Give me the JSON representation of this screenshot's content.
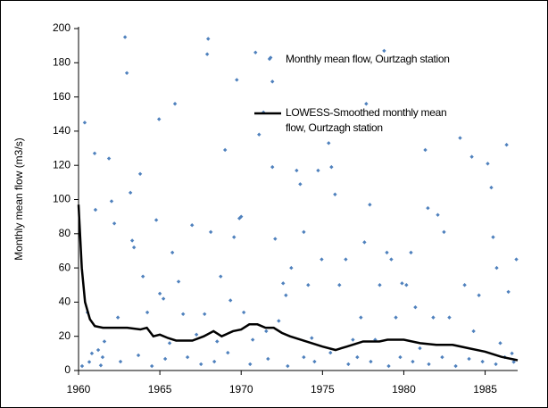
{
  "chart_data": {
    "type": "scatter",
    "y_label": "Monthly mean flow (m3/s)",
    "xlim": [
      1960,
      1987
    ],
    "ylim": [
      0,
      200
    ],
    "xticks": [
      1960,
      1965,
      1970,
      1975,
      1980,
      1985
    ],
    "yticks": [
      0,
      20,
      40,
      60,
      80,
      100,
      120,
      140,
      160,
      180,
      200
    ],
    "series": [
      {
        "name": "Monthly mean flow, Ourtzagh station",
        "color": "#4f81bd",
        "mode": "markers",
        "x": [
          1960.38,
          1960.55,
          1960.66,
          1960.82,
          1960.99,
          1961.04,
          1961.21,
          1961.37,
          1961.59,
          1961.87,
          1962.03,
          1962.2,
          1962.42,
          1962.86,
          1962.97,
          1963.19,
          1963.3,
          1963.41,
          1963.79,
          1963.96,
          1964.23,
          1964.78,
          1964.95,
          1965.0,
          1965.22,
          1965.6,
          1965.77,
          1965.93,
          1966.15,
          1966.43,
          1966.98,
          1967.25,
          1967.75,
          1967.91,
          1967.97,
          1968.13,
          1968.52,
          1968.74,
          1969.01,
          1969.34,
          1969.56,
          1969.73,
          1969.89,
          1970.0,
          1970.16,
          1970.71,
          1970.88,
          1971.1,
          1971.37,
          1971.54,
          1971.81,
          1971.92,
          1971.92,
          1972.09,
          1972.31,
          1972.58,
          1972.75,
          1973.08,
          1973.41,
          1973.63,
          1973.85,
          1974.12,
          1974.34,
          1974.73,
          1974.95,
          1975.38,
          1975.55,
          1975.77,
          1976.04,
          1976.43,
          1976.87,
          1977.36,
          1977.58,
          1977.69,
          1977.91,
          1978.24,
          1978.52,
          1978.79,
          1978.96,
          1979.23,
          1979.51,
          1979.89,
          1980.16,
          1980.44,
          1980.71,
          1980.99,
          1981.32,
          1981.48,
          1981.81,
          1982.09,
          1982.47,
          1982.8,
          1983.46,
          1983.74,
          1984.18,
          1984.29,
          1984.62,
          1985.16,
          1985.38,
          1985.49,
          1985.71,
          1985.93,
          1986.32,
          1986.43,
          1986.65,
          1986.92,
          1986.76,
          1960.22,
          1961.48,
          1962.58,
          1963.68,
          1964.51,
          1965.33,
          1966.7,
          1967.53,
          1968.35,
          1969.18,
          1970.55,
          1971.65,
          1972.86,
          1973.85,
          1974.51,
          1975.49,
          1976.59,
          1977.14,
          1977.97,
          1979.07,
          1979.78,
          1980.55,
          1981.54,
          1982.36,
          1983.19,
          1984.01,
          1984.84,
          1985.66,
          1986.21
        ],
        "values": [
          145,
          34,
          5,
          10,
          127,
          94,
          12,
          3,
          17,
          124,
          99,
          86,
          31,
          195,
          174,
          104,
          76,
          72,
          115,
          55,
          34,
          88,
          147,
          45,
          42,
          16,
          69,
          156,
          52,
          33,
          85,
          21,
          33,
          185,
          194,
          81,
          17,
          55,
          129,
          41,
          78,
          170,
          89,
          90,
          34,
          18,
          186,
          138,
          151,
          23,
          183,
          169,
          119,
          77,
          29,
          51,
          44,
          60,
          117,
          109,
          81,
          50,
          19,
          117,
          65,
          133,
          119,
          103,
          50,
          65,
          18,
          31,
          75,
          156,
          97,
          18,
          50,
          187,
          69,
          65,
          31,
          51,
          50,
          69,
          37,
          13,
          129,
          95,
          31,
          91,
          81,
          31,
          136,
          50,
          125,
          23,
          44,
          121,
          107,
          78,
          60,
          16,
          132,
          46,
          10,
          65,
          5,
          2.6,
          7.8,
          5.2,
          8.9,
          2.6,
          6.8,
          7.8,
          3.7,
          5.2,
          10.4,
          3.7,
          6.8,
          2.6,
          7.8,
          5.2,
          10.4,
          3.7,
          7.8,
          5.2,
          2.6,
          7.8,
          5.2,
          3.7,
          7.8,
          2.6,
          6.8,
          5.2,
          3.7,
          7.8
        ]
      },
      {
        "name": "LOWESS-Smoothed monthly mean flow, Ourtzagh station",
        "color": "#000000",
        "mode": "line",
        "x": [
          1960,
          1960.2,
          1960.4,
          1960.7,
          1961,
          1961.5,
          1962,
          1963,
          1963.8,
          1964.2,
          1964.6,
          1965,
          1965.5,
          1966,
          1967,
          1967.7,
          1968.3,
          1968.8,
          1969.5,
          1970,
          1970.5,
          1971,
          1971.5,
          1972,
          1972.5,
          1973,
          1974,
          1975,
          1975.8,
          1976.5,
          1977.5,
          1978.5,
          1979,
          1980,
          1981,
          1982,
          1983,
          1984,
          1985,
          1986,
          1987
        ],
        "values": [
          97,
          60,
          40,
          30,
          26,
          25,
          25,
          25,
          24,
          25,
          20,
          21,
          19,
          17.5,
          17.5,
          20,
          23,
          20,
          23,
          24,
          27,
          27,
          25,
          25,
          22,
          20,
          17,
          14,
          12,
          14,
          17,
          17,
          18,
          18,
          16,
          15,
          15,
          13,
          11,
          8,
          6
        ]
      }
    ]
  }
}
